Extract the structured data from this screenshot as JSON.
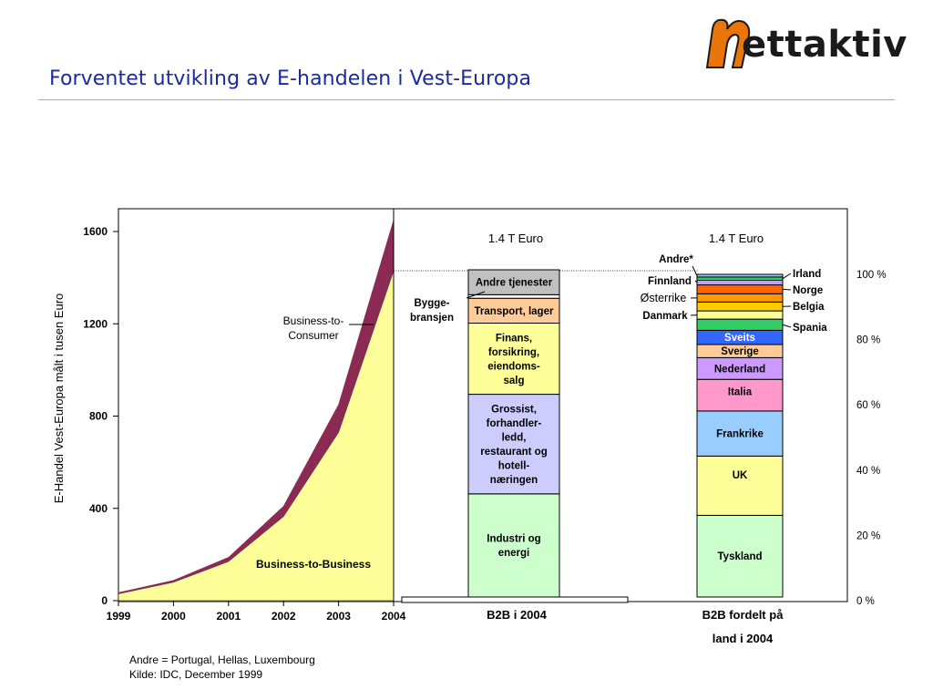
{
  "page": {
    "title": "Forventet utvikling av E-handelen i Vest-Europa",
    "logo_text": "ettaktiv",
    "footnotes": [
      "Andre = Portugal, Hellas, Luxembourg",
      "Kilde: IDC, December 1999"
    ]
  },
  "colors": {
    "title": "#1a2aa0",
    "rule": "#f0a030",
    "b2b_fill": "#ffff99",
    "b2c_fill": "#8b2a52",
    "logo_orange": "#e8760a"
  },
  "chart_data": [
    {
      "type": "area",
      "ylabel": "E-Handel Vest-Europa målt i tusen Euro",
      "xlabel": "",
      "x": [
        "1999",
        "2000",
        "2001",
        "2002",
        "2003",
        "2004"
      ],
      "yticks": [
        "0",
        "400",
        "800",
        "1200",
        "1600"
      ],
      "ylim": [
        0,
        1650
      ],
      "series": [
        {
          "name": "Business-to-Business",
          "values": [
            30,
            80,
            170,
            365,
            730,
            1430
          ]
        },
        {
          "name": "Business-to-Consumer",
          "values": [
            5,
            8,
            18,
            45,
            120,
            220
          ]
        }
      ]
    },
    {
      "type": "bar",
      "title": "1.4 T Euro",
      "category": "B2B i 2004",
      "segments": [
        {
          "label": "Industri og energi",
          "share": 0.29,
          "color": "#ccffcc"
        },
        {
          "label": "Grossist, forhandler-ledd, restaurant og hotell-næringen",
          "share": 0.28,
          "color": "#ccccff"
        },
        {
          "label": "Finans, forsikring, eiendoms-salg",
          "share": 0.2,
          "color": "#ffff99"
        },
        {
          "label": "Transport, lager",
          "share": 0.07,
          "color": "#ffcc99"
        },
        {
          "label": "Bygge-bransjen",
          "share": 0.01,
          "color": "#ffffff"
        },
        {
          "label": "Andre tjenester",
          "share": 0.07,
          "color": "#c0c0c0"
        }
      ],
      "side_label": "Bygge-bransjen"
    },
    {
      "type": "bar",
      "title": "1.4 T Euro",
      "category_lines": [
        "B2B fordelt på",
        "land i 2004"
      ],
      "yticks": [
        "0 %",
        "20 %",
        "40 %",
        "60 %",
        "80 %",
        "100 %"
      ],
      "segments": [
        {
          "label": "Tyskland",
          "share": 0.248,
          "color": "#ccffcc"
        },
        {
          "label": "UK",
          "share": 0.18,
          "color": "#ffff99"
        },
        {
          "label": "Frankrike",
          "share": 0.137,
          "color": "#99ccff"
        },
        {
          "label": "Italia",
          "share": 0.096,
          "color": "#ff99cc"
        },
        {
          "label": "Nederland",
          "share": 0.066,
          "color": "#cc99ff"
        },
        {
          "label": "Sverige",
          "share": 0.04,
          "color": "#ffcc99"
        },
        {
          "label": "Sveits",
          "share": 0.043,
          "color": "#3366ff"
        },
        {
          "label": "Spania",
          "share": 0.034,
          "color": "#33cc66"
        },
        {
          "label": "Danmark",
          "share": 0.025,
          "color": "#ffff99"
        },
        {
          "label": "Belgia",
          "share": 0.027,
          "color": "#ffcc00"
        },
        {
          "label": "Østerrike",
          "share": 0.025,
          "color": "#ff9900"
        },
        {
          "label": "Norge",
          "share": 0.027,
          "color": "#ff6600"
        },
        {
          "label": "Finnland",
          "share": 0.014,
          "color": "#cc99ff"
        },
        {
          "label": "Irland",
          "share": 0.01,
          "color": "#33cc66"
        },
        {
          "label": "Andre*",
          "share": 0.008,
          "color": "#99ccff"
        }
      ]
    }
  ]
}
